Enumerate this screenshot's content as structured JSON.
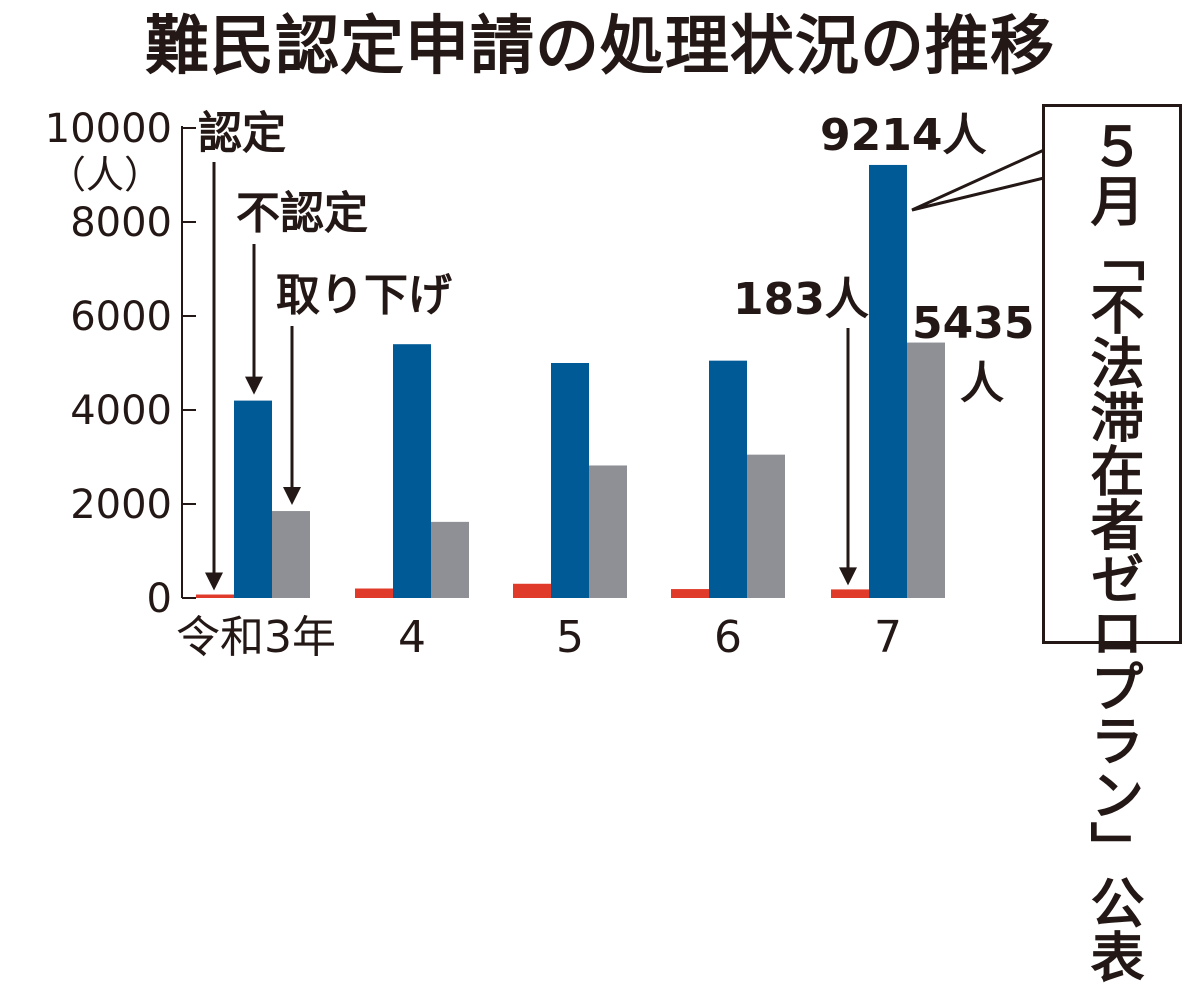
{
  "chart_data": {
    "type": "bar",
    "title": "難民認定申請の処理状況の推移",
    "unit": "（人）",
    "categories": [
      "令和3年",
      "4",
      "5",
      "6",
      "7"
    ],
    "ylim": [
      0,
      10000
    ],
    "yticks": [
      0,
      2000,
      4000,
      6000,
      8000,
      10000
    ],
    "series": [
      {
        "name": "認定",
        "color": "#e03b2a",
        "values": [
          74,
          202,
          303,
          190,
          183
        ]
      },
      {
        "name": "不認定",
        "color": "#005a96",
        "values": [
          4200,
          5400,
          5000,
          5050,
          9214
        ]
      },
      {
        "name": "取り下げ",
        "color": "#8f9096",
        "values": [
          1850,
          1620,
          2820,
          3050,
          5435
        ]
      }
    ],
    "annotations": {
      "recognized_2025": "183人",
      "denied_2025": "9214人",
      "withdrawn_2025_number": "5435",
      "withdrawn_2025_unit": "人"
    },
    "note": "５月「不法滞在者ゼロプラン」公表",
    "grid": false
  }
}
